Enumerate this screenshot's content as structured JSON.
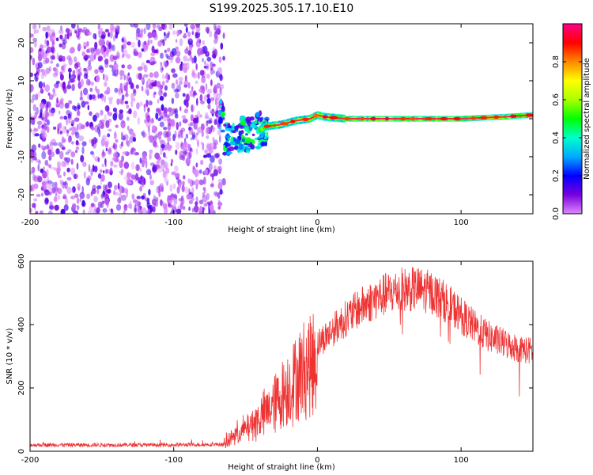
{
  "title": "S199.2025.305.17.10.E10",
  "colors": {
    "snr_line": "#ee3333",
    "frame": "#000000",
    "ridge_core": "#ff2244"
  },
  "chart_data": [
    {
      "type": "heatmap",
      "name": "spectrogram",
      "xlabel": "Height of straight line (km)",
      "ylabel": "Frequency (Hz)",
      "xlim": [
        -200,
        150
      ],
      "ylim": [
        -25,
        25
      ],
      "x_ticks": [
        -200,
        -100,
        0,
        100
      ],
      "x_tick_labels": [
        "-200",
        "-100",
        "0",
        "100"
      ],
      "y_ticks": [
        20,
        10,
        0,
        -10,
        -20
      ],
      "y_tick_labels": [
        "20",
        "10",
        "0",
        "-10",
        "-20"
      ],
      "noise_region_x": [
        -200,
        -65
      ],
      "ridge": {
        "points": [
          [
            -65,
            -5
          ],
          [
            -55,
            -4
          ],
          [
            -45,
            -4
          ],
          [
            -35,
            -2
          ],
          [
            -25,
            -1.5
          ],
          [
            -15,
            -0.5
          ],
          [
            -5,
            0
          ],
          [
            0,
            1
          ],
          [
            5,
            0.5
          ],
          [
            20,
            0
          ],
          [
            60,
            0
          ],
          [
            100,
            0
          ],
          [
            130,
            0.5
          ],
          [
            150,
            1
          ]
        ]
      },
      "colorbar": {
        "label": "Normalized spectral amplitude",
        "range": [
          0,
          1
        ],
        "ticks": [
          0.0,
          0.2,
          0.4,
          0.6,
          0.8
        ],
        "tick_labels": [
          "0.0",
          "0.2",
          "0.4",
          "0.6",
          "0.8"
        ],
        "stops": [
          "#dd88ff",
          "#7700dd",
          "#0000ff",
          "#00aaff",
          "#00ffcc",
          "#00ff00",
          "#aaff00",
          "#ffff00",
          "#ff8800",
          "#ff0000",
          "#ff0088"
        ]
      }
    },
    {
      "type": "line",
      "name": "snr",
      "xlabel": "Height of straight line (km)",
      "ylabel": "SNR (10 * v/v)",
      "xlim": [
        -200,
        150
      ],
      "ylim": [
        0,
        600
      ],
      "x_ticks": [
        -200,
        -100,
        0,
        100
      ],
      "x_tick_labels": [
        "-200",
        "-100",
        "0",
        "100"
      ],
      "y_ticks": [
        0,
        200,
        400,
        600
      ],
      "y_tick_labels": [
        "0",
        "200",
        "400",
        "600"
      ],
      "envelope": [
        [
          -200,
          20
        ],
        [
          -100,
          20
        ],
        [
          -65,
          22
        ],
        [
          -60,
          50
        ],
        [
          -50,
          80
        ],
        [
          -40,
          120
        ],
        [
          -30,
          170
        ],
        [
          -20,
          230
        ],
        [
          -10,
          290
        ],
        [
          0,
          340
        ],
        [
          10,
          380
        ],
        [
          20,
          420
        ],
        [
          30,
          455
        ],
        [
          40,
          480
        ],
        [
          50,
          500
        ],
        [
          60,
          510
        ],
        [
          70,
          512
        ],
        [
          80,
          500
        ],
        [
          90,
          470
        ],
        [
          100,
          430
        ],
        [
          110,
          390
        ],
        [
          120,
          360
        ],
        [
          130,
          340
        ],
        [
          140,
          325
        ],
        [
          150,
          315
        ]
      ]
    }
  ]
}
